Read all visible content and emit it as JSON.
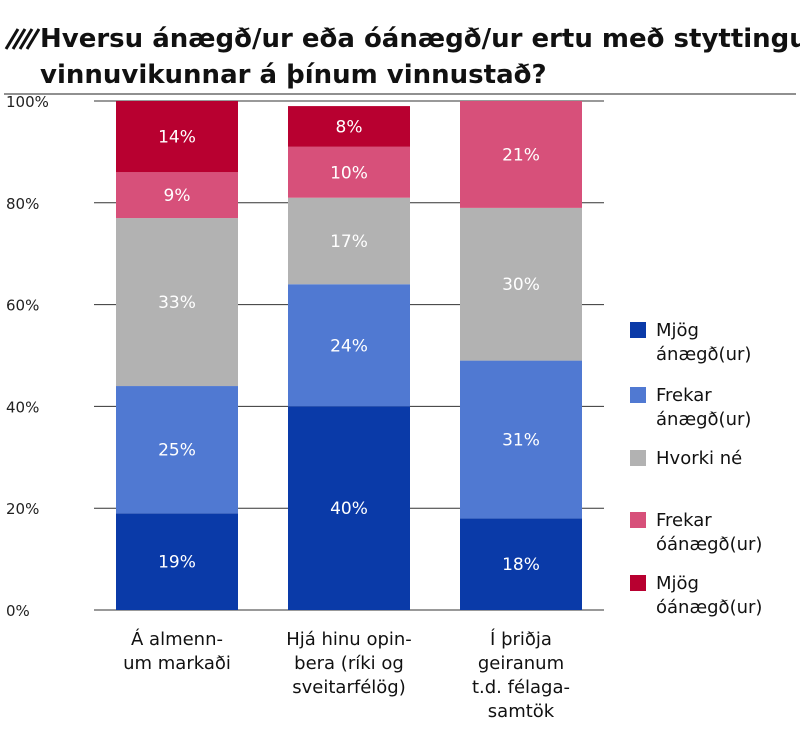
{
  "chart_data": {
    "type": "bar",
    "stacked": true,
    "title": "Hversu ánægð/ur eða óánægð/ur ertu með styttingu vinnuvikunnar á þínum vinnustað?",
    "title_lines": [
      "Hversu ánægð/ur eða óánægð/ur ertu með styttingu",
      "vinnuvikunnar á þínum vinnustað?"
    ],
    "categories": [
      [
        "Á almenn-",
        "um markaði"
      ],
      [
        "Hjá hinu opin-",
        "bera (ríki og",
        "sveitarfélög)"
      ],
      [
        "Í þriðja",
        "geiranum",
        "t.d. félaga-",
        "samtök"
      ]
    ],
    "series": [
      {
        "name": [
          "Mjög",
          "ánægð(ur)"
        ],
        "color": "#0a3aa8",
        "values": [
          19,
          40,
          18
        ]
      },
      {
        "name": [
          "Frekar",
          "ánægð(ur)"
        ],
        "color": "#5079d2",
        "values": [
          25,
          24,
          31
        ]
      },
      {
        "name": [
          "Hvorki né"
        ],
        "color": "#b2b2b2",
        "values": [
          33,
          17,
          30
        ]
      },
      {
        "name": [
          "Frekar",
          "óánægð(ur)"
        ],
        "color": "#d7507a",
        "values": [
          9,
          10,
          21
        ]
      },
      {
        "name": [
          "Mjög",
          "óánægð(ur)"
        ],
        "color": "#b80030",
        "values": [
          14,
          8,
          0
        ]
      }
    ],
    "segment_labels": [
      [
        "19%",
        "40%",
        "18%"
      ],
      [
        "25%",
        "24%",
        "31%"
      ],
      [
        "33%",
        "17%",
        "30%"
      ],
      [
        "9%",
        "10%",
        "21%"
      ],
      [
        "14%",
        "8%",
        ""
      ]
    ],
    "y_ticks": [
      {
        "value": 0,
        "label": "0%"
      },
      {
        "value": 20,
        "label": "20%"
      },
      {
        "value": 40,
        "label": "40%"
      },
      {
        "value": 60,
        "label": "60%"
      },
      {
        "value": 80,
        "label": "80%"
      },
      {
        "value": 100,
        "label": "100%"
      }
    ],
    "ylim": [
      0,
      100
    ],
    "grid": true,
    "legend": "right",
    "xlabel": "",
    "ylabel": ""
  }
}
